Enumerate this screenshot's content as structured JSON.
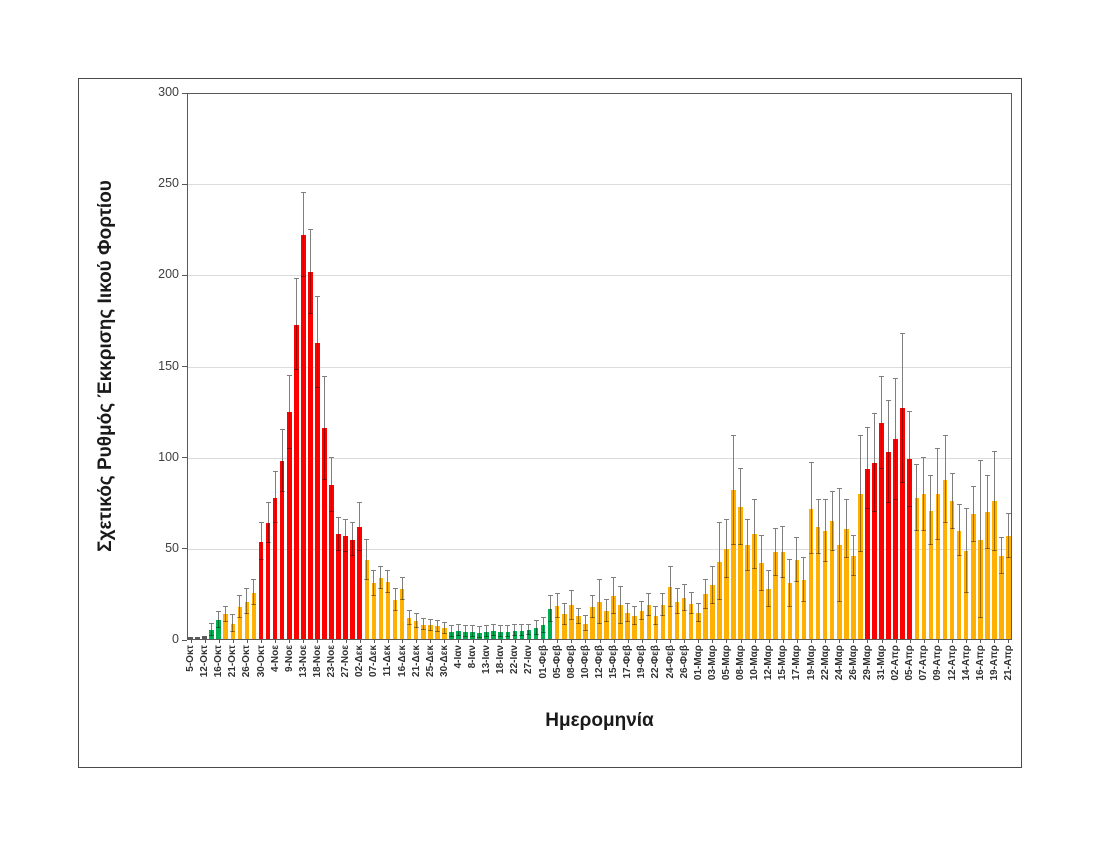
{
  "chart_data": {
    "type": "bar",
    "title": "",
    "ylabel": "Σχετικός Ρυθμός Έκκρισης Ιικού Φορτίου",
    "xlabel": "Ημερομηνία",
    "ylim": [
      0,
      300
    ],
    "yticks": [
      0,
      50,
      100,
      150,
      200,
      250,
      300
    ],
    "grid": true,
    "legend": "none",
    "x_tick_labels": [
      "5-Οκτ",
      "12-Οκτ",
      "16-Οκτ",
      "21-Οκτ",
      "26-Οκτ",
      "30-Οκτ",
      "4-Νοε",
      "9-Νοε",
      "13-Νοε",
      "18-Νοε",
      "23-Νοε",
      "27-Νοε",
      "02-Δεκ",
      "07-Δεκ",
      "11-Δεκ",
      "16-Δεκ",
      "21-Δεκ",
      "25-Δεκ",
      "30-Δεκ",
      "4-Ιαν",
      "8-Ιαν",
      "13-Ιαν",
      "18-Ιαν",
      "22-Ιαν",
      "27-Ιαν",
      "01-Φεβ",
      "05-Φεβ",
      "08-Φεβ",
      "10-Φεβ",
      "12-Φεβ",
      "15-Φεβ",
      "17-Φεβ",
      "19-Φεβ",
      "22-Φεβ",
      "24-Φεβ",
      "26-Φεβ",
      "01-Μαρ",
      "03-Μαρ",
      "05-Μαρ",
      "08-Μαρ",
      "10-Μαρ",
      "12-Μαρ",
      "15-Μαρ",
      "17-Μαρ",
      "19-Μαρ",
      "22-Μαρ",
      "24-Μαρ",
      "26-Μαρ",
      "29-Μαρ",
      "31-Μαρ",
      "02-Απρ",
      "05-Απρ",
      "07-Απρ",
      "09-Απρ",
      "12-Απρ",
      "14-Απρ",
      "16-Απρ",
      "19-Απρ",
      "21-Απρ"
    ],
    "x_label_every_n_bars": 2,
    "bars": {
      "values": [
        1.5,
        1.5,
        2,
        5.5,
        11,
        14,
        9,
        18,
        21,
        26,
        54,
        64,
        78,
        98,
        125,
        173,
        222,
        202,
        163,
        116,
        85,
        58,
        57,
        55,
        62,
        44,
        31,
        34,
        32,
        22,
        28,
        12,
        10.5,
        8.5,
        8,
        7.5,
        6.5,
        4.5,
        5,
        4.5,
        4.5,
        4,
        4.5,
        5,
        4.5,
        4.5,
        5,
        5,
        5.5,
        6.5,
        8,
        17,
        18.5,
        14,
        19,
        13,
        9,
        18,
        21,
        16,
        24,
        19,
        15,
        13,
        16,
        19,
        13,
        19,
        29,
        21,
        23,
        20,
        15,
        25,
        30,
        43,
        50,
        82,
        73,
        52,
        58,
        42,
        28,
        48,
        48,
        31,
        44,
        33,
        72,
        62,
        60,
        65,
        52,
        61,
        46,
        80,
        94,
        97,
        119,
        103,
        110,
        127,
        99,
        78,
        80,
        71,
        80,
        88,
        76,
        60,
        49,
        69,
        55,
        70,
        76,
        46,
        57
      ],
      "errors": [
        0.5,
        0.5,
        0.5,
        3.5,
        4.5,
        4,
        4.5,
        6,
        7,
        7,
        10,
        11,
        14,
        17,
        20,
        25,
        23,
        23,
        25,
        28,
        15,
        9,
        9,
        9,
        13,
        11,
        7,
        6,
        6,
        6,
        6,
        4,
        4,
        3,
        3,
        3,
        3,
        3,
        3,
        3,
        3,
        3,
        3,
        3,
        3,
        3,
        3,
        3,
        3,
        4,
        4,
        7,
        6.5,
        6,
        8,
        4,
        4,
        6,
        12,
        6,
        10,
        10,
        5,
        5,
        5,
        6,
        5,
        6,
        11,
        7,
        7,
        6,
        5,
        8,
        10,
        21,
        16,
        30,
        21,
        14,
        19,
        15,
        10,
        13,
        14,
        13,
        12,
        12,
        25,
        15,
        17,
        16,
        31,
        16,
        11,
        32,
        22,
        27,
        25,
        28,
        33,
        41,
        26,
        18,
        20,
        19,
        25,
        24,
        15,
        14,
        23,
        15,
        43,
        20,
        27,
        10,
        12
      ],
      "color_string": "dddggooooorrrrrrrrrrrrrrroooooooooooogggggggggggggggoooooooooooooooooooooooooooooooooooooooooooorrrrrrroooooooooooooo"
    },
    "palette": {
      "red": "#FF0000",
      "orange": "#FFB000",
      "green": "#00B050",
      "dark": "#595959",
      "whisker": "#7F7F7F",
      "whisker_lower": "rgba(0,0,0,0.38)",
      "grid": "#DCDCDC",
      "axis": "#595959"
    }
  }
}
